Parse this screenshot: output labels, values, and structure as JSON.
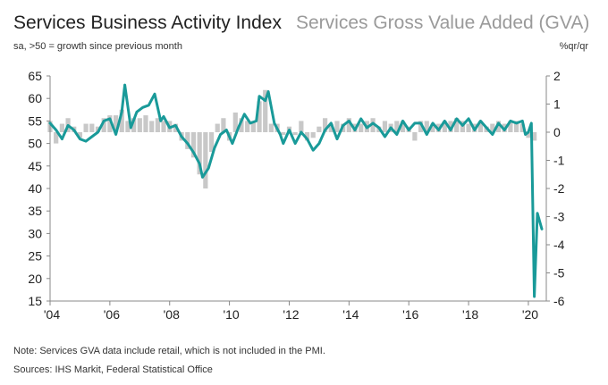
{
  "header": {
    "title_primary": "Services Business Activity Index",
    "title_secondary": "Services Gross Value Added (GVA)",
    "subtitle": "sa, >50 = growth since previous month",
    "right_unit": "%qr/qr"
  },
  "footer": {
    "note": "Note: Services GVA data include retail, which is not included in the PMI.",
    "sources": "Sources: IHS Markit, Federal Statistical Office"
  },
  "colors": {
    "line": "#199a99",
    "bars": "#c8c8c8",
    "axis": "#888888"
  },
  "chart_data": {
    "type": "line+bar",
    "left_axis": {
      "min": 15,
      "max": 65,
      "ticks": [
        15,
        20,
        25,
        30,
        35,
        40,
        45,
        50,
        55,
        60,
        65
      ]
    },
    "right_axis": {
      "min": -6,
      "max": 2,
      "ticks": [
        -6,
        -5,
        -4,
        -3,
        -2,
        -1,
        0,
        1,
        2
      ]
    },
    "x_axis": {
      "min": 2004,
      "max": 2020.6,
      "ticks": [
        2004,
        2006,
        2008,
        2010,
        2012,
        2014,
        2016,
        2018,
        2020
      ],
      "tick_labels": [
        "'04",
        "'06",
        "'08",
        "'10",
        "'12",
        "'14",
        "'16",
        "'18",
        "'20"
      ]
    },
    "series": [
      {
        "name": "Services Business Activity Index",
        "axis": "left",
        "style": "line",
        "x": [
          2004.0,
          2004.2,
          2004.4,
          2004.6,
          2004.8,
          2005.0,
          2005.2,
          2005.4,
          2005.6,
          2005.8,
          2006.0,
          2006.2,
          2006.4,
          2006.5,
          2006.7,
          2006.9,
          2007.1,
          2007.3,
          2007.5,
          2007.7,
          2007.8,
          2008.0,
          2008.2,
          2008.4,
          2008.6,
          2008.8,
          2009.0,
          2009.1,
          2009.3,
          2009.5,
          2009.7,
          2009.9,
          2010.1,
          2010.3,
          2010.5,
          2010.7,
          2010.9,
          2011.0,
          2011.2,
          2011.3,
          2011.5,
          2011.7,
          2011.8,
          2012.0,
          2012.2,
          2012.4,
          2012.6,
          2012.8,
          2013.0,
          2013.2,
          2013.4,
          2013.6,
          2013.8,
          2014.0,
          2014.2,
          2014.4,
          2014.6,
          2014.8,
          2015.0,
          2015.2,
          2015.4,
          2015.6,
          2015.8,
          2016.0,
          2016.2,
          2016.4,
          2016.6,
          2016.8,
          2017.0,
          2017.2,
          2017.4,
          2017.6,
          2017.8,
          2018.0,
          2018.2,
          2018.4,
          2018.6,
          2018.8,
          2019.0,
          2019.2,
          2019.4,
          2019.6,
          2019.8,
          2019.9,
          2020.0,
          2020.1,
          2020.2,
          2020.3,
          2020.45
        ],
        "values": [
          54.5,
          53.0,
          51.0,
          54.0,
          53.0,
          51.0,
          50.5,
          51.5,
          52.5,
          55.0,
          55.5,
          52.0,
          57.0,
          63.0,
          53.5,
          57.0,
          58.0,
          58.5,
          61.0,
          55.0,
          56.0,
          53.5,
          54.0,
          51.5,
          50.0,
          48.0,
          45.5,
          42.5,
          44.5,
          49.0,
          52.0,
          53.0,
          50.0,
          53.5,
          56.5,
          54.5,
          55.0,
          60.5,
          59.5,
          61.5,
          54.5,
          52.0,
          50.0,
          53.0,
          50.0,
          52.5,
          51.0,
          48.5,
          50.0,
          53.0,
          54.5,
          51.0,
          54.0,
          55.0,
          53.0,
          55.5,
          53.5,
          54.5,
          53.5,
          51.5,
          53.5,
          52.0,
          55.0,
          53.0,
          54.5,
          54.5,
          52.0,
          54.5,
          53.0,
          55.0,
          53.0,
          55.5,
          54.0,
          55.5,
          53.0,
          55.0,
          53.5,
          52.0,
          54.5,
          53.0,
          55.0,
          54.5,
          55.0,
          52.0,
          52.5,
          54.5,
          16.0,
          34.5,
          31.0
        ]
      },
      {
        "name": "Services Gross Value Added (GVA)",
        "axis": "right",
        "style": "bar",
        "x": [
          2004.0,
          2004.2,
          2004.4,
          2004.6,
          2004.8,
          2005.0,
          2005.2,
          2005.4,
          2005.6,
          2005.8,
          2006.0,
          2006.2,
          2006.4,
          2006.6,
          2006.8,
          2007.0,
          2007.2,
          2007.4,
          2007.6,
          2007.8,
          2008.0,
          2008.2,
          2008.4,
          2008.6,
          2008.8,
          2009.0,
          2009.2,
          2009.4,
          2009.6,
          2009.8,
          2010.0,
          2010.2,
          2010.4,
          2010.6,
          2010.8,
          2011.0,
          2011.2,
          2011.4,
          2011.6,
          2011.8,
          2012.0,
          2012.2,
          2012.4,
          2012.6,
          2012.8,
          2013.0,
          2013.2,
          2013.4,
          2013.6,
          2013.8,
          2014.0,
          2014.2,
          2014.4,
          2014.6,
          2014.8,
          2015.0,
          2015.2,
          2015.4,
          2015.6,
          2015.8,
          2016.0,
          2016.2,
          2016.4,
          2016.6,
          2016.8,
          2017.0,
          2017.2,
          2017.4,
          2017.6,
          2017.8,
          2018.0,
          2018.2,
          2018.4,
          2018.6,
          2018.8,
          2019.0,
          2019.2,
          2019.4,
          2019.6,
          2019.8,
          2020.0,
          2020.2
        ],
        "values": [
          0.4,
          -0.4,
          0.3,
          0.5,
          0.2,
          -0.2,
          0.3,
          0.3,
          0.2,
          0.5,
          0.6,
          0.6,
          0.8,
          0.4,
          0.5,
          0.5,
          0.6,
          0.4,
          0.5,
          0.4,
          0.4,
          0.3,
          -0.3,
          -0.6,
          -0.9,
          -1.5,
          -2.0,
          -0.7,
          0.3,
          0.5,
          -0.3,
          0.7,
          0.5,
          0.4,
          0.4,
          1.1,
          1.5,
          0.3,
          0.3,
          -0.1,
          0.2,
          -0.1,
          0.4,
          -0.3,
          -0.2,
          0.2,
          0.5,
          0.3,
          0.4,
          0.3,
          0.5,
          0.3,
          0.3,
          0.4,
          0.5,
          0.2,
          0.4,
          0.3,
          0.4,
          0.4,
          0.2,
          -0.3,
          0.4,
          0.4,
          0.3,
          0.3,
          0.4,
          0.4,
          0.5,
          0.4,
          0.3,
          0.3,
          0.4,
          0.2,
          0.3,
          0.4,
          0.3,
          0.4,
          0.4,
          0.3,
          -0.2,
          -0.3
        ]
      }
    ],
    "title": "Services Business Activity Index",
    "xlabel": "",
    "ylabel": "",
    "y2label": "%qr/qr",
    "grid": false
  }
}
